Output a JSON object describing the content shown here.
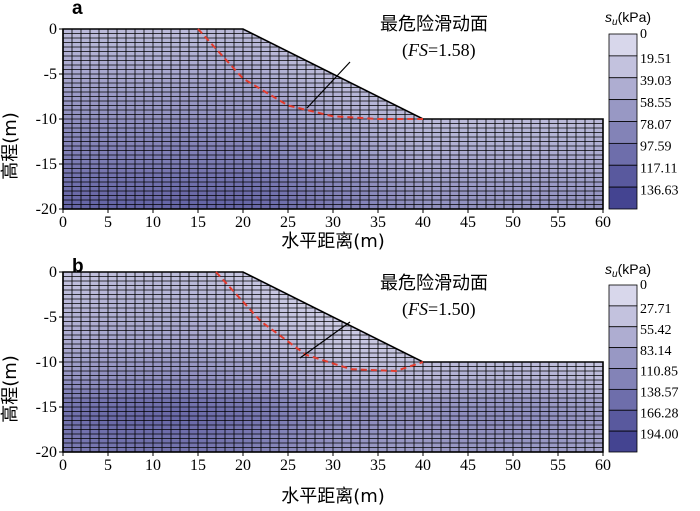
{
  "colors": {
    "mesh_light": "#d8d7eb",
    "mesh_dark": "#3c3c8c",
    "grid": "#000000",
    "slip": "#e23b2e"
  },
  "chart_data": [
    {
      "type": "heatmap",
      "panel": "a",
      "xlabel": "水平距离(m)",
      "ylabel": "高程(m)",
      "xticks": [
        0,
        5,
        10,
        15,
        20,
        25,
        30,
        35,
        40,
        45,
        50,
        55,
        60
      ],
      "yticks": [
        0,
        -5,
        -10,
        -15,
        -20
      ],
      "xlim": [
        0,
        60
      ],
      "ylim": [
        -20,
        0
      ],
      "slope_profile": {
        "x": [
          0,
          20,
          40,
          60
        ],
        "y": [
          0,
          0,
          -10,
          -10
        ]
      },
      "slip_surface": {
        "x": [
          15,
          20,
          25,
          30,
          35,
          40
        ],
        "y": [
          0,
          -5.5,
          -8.5,
          -9.7,
          -10,
          -10
        ]
      },
      "annotation": {
        "line1": "最危险滑动面",
        "fs_label": "FS",
        "fs_value": "=1.58"
      },
      "colorbar": {
        "title_var": "s",
        "title_sub": "u",
        "title_unit": "(kPa)",
        "levels": [
          "0",
          "19.51",
          "39.03",
          "58.55",
          "78.07",
          "97.59",
          "117.11",
          "136.63"
        ]
      }
    },
    {
      "type": "heatmap",
      "panel": "b",
      "xlabel": "水平距离(m)",
      "ylabel": "高程(m)",
      "xticks": [
        0,
        5,
        10,
        15,
        20,
        25,
        30,
        35,
        40,
        45,
        50,
        55,
        60
      ],
      "yticks": [
        0,
        -5,
        -10,
        -15,
        -20
      ],
      "xlim": [
        0,
        60
      ],
      "ylim": [
        -20,
        0
      ],
      "slope_profile": {
        "x": [
          0,
          20,
          40,
          60
        ],
        "y": [
          0,
          0,
          -10,
          -10
        ]
      },
      "slip_surface": {
        "x": [
          17,
          22,
          27,
          32,
          37,
          40
        ],
        "y": [
          0,
          -5.5,
          -9.2,
          -10.8,
          -11,
          -10
        ]
      },
      "annotation": {
        "line1": "最危险滑动面",
        "fs_label": "FS",
        "fs_value": "=1.50"
      },
      "colorbar": {
        "title_var": "s",
        "title_sub": "u",
        "title_unit": "(kPa)",
        "levels": [
          "0",
          "27.71",
          "55.42",
          "83.14",
          "110.85",
          "138.57",
          "166.28",
          "194.00"
        ]
      }
    }
  ]
}
